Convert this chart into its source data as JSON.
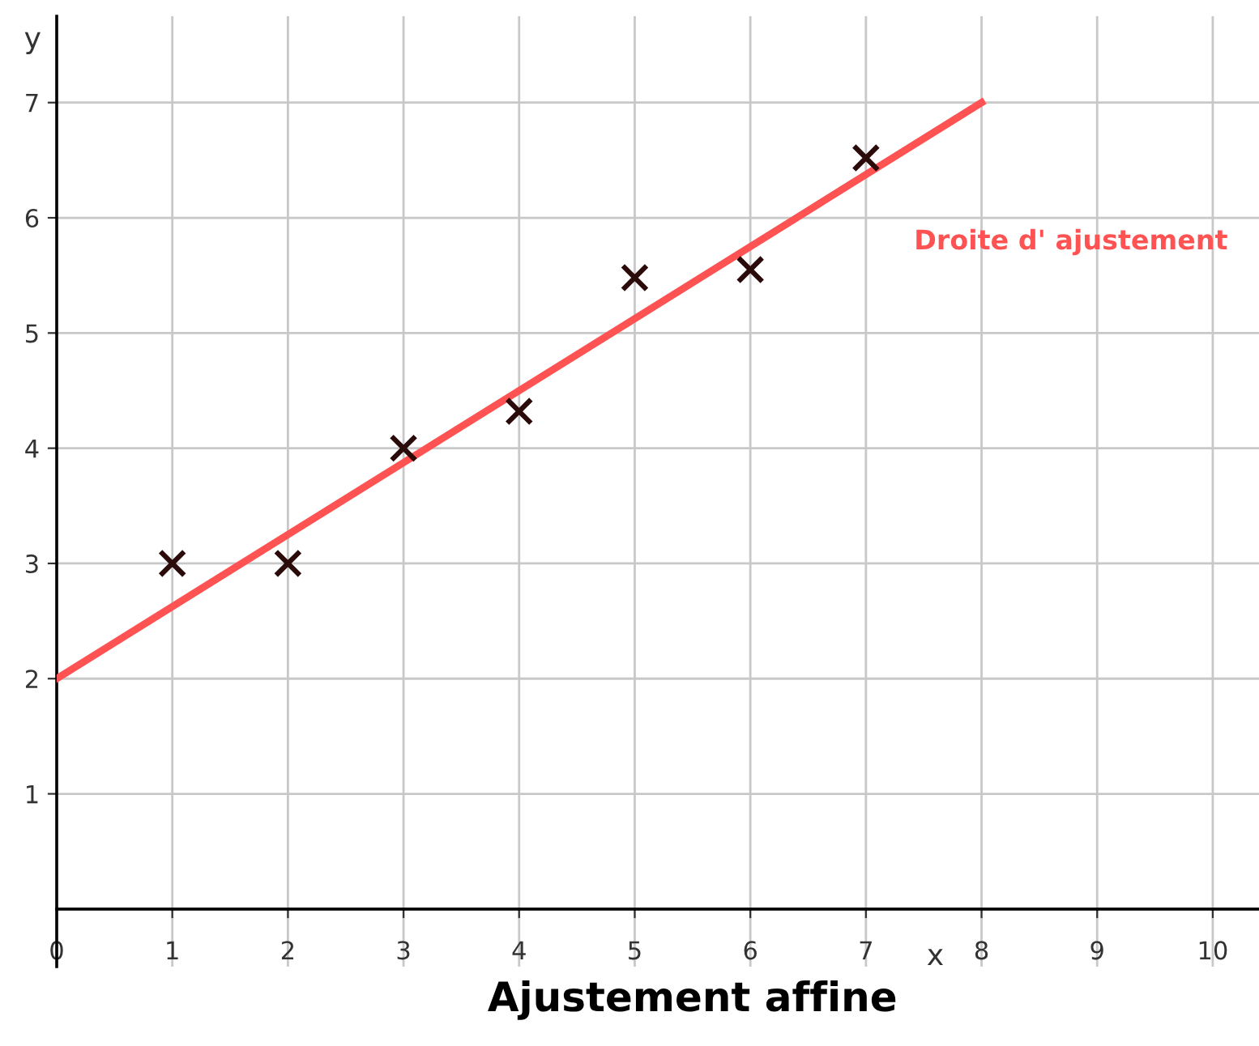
{
  "chart_data": {
    "type": "scatter",
    "title": "Ajustement affine",
    "xlabel": "x",
    "ylabel": "y",
    "xlim": [
      0,
      10.4
    ],
    "ylim": [
      -0.5,
      7.75
    ],
    "xticks": [
      0,
      1,
      2,
      3,
      4,
      5,
      6,
      7,
      8,
      9,
      10
    ],
    "yticks": [
      1,
      2,
      3,
      4,
      5,
      6,
      7
    ],
    "grid": true,
    "legend": false,
    "series": [
      {
        "color": "#2b0a0a",
        "marker": "cross",
        "x": [
          1,
          2,
          3,
          4,
          5,
          6,
          7
        ],
        "values": [
          3,
          3,
          4,
          4.32,
          5.48,
          5.55,
          6.52
        ]
      },
      {
        "type": "line",
        "name": "Droite d' ajustement",
        "color": "#ff5252",
        "marker": "none",
        "line_style": "solid",
        "x": [
          0,
          8
        ],
        "values": [
          2,
          7
        ]
      }
    ]
  }
}
